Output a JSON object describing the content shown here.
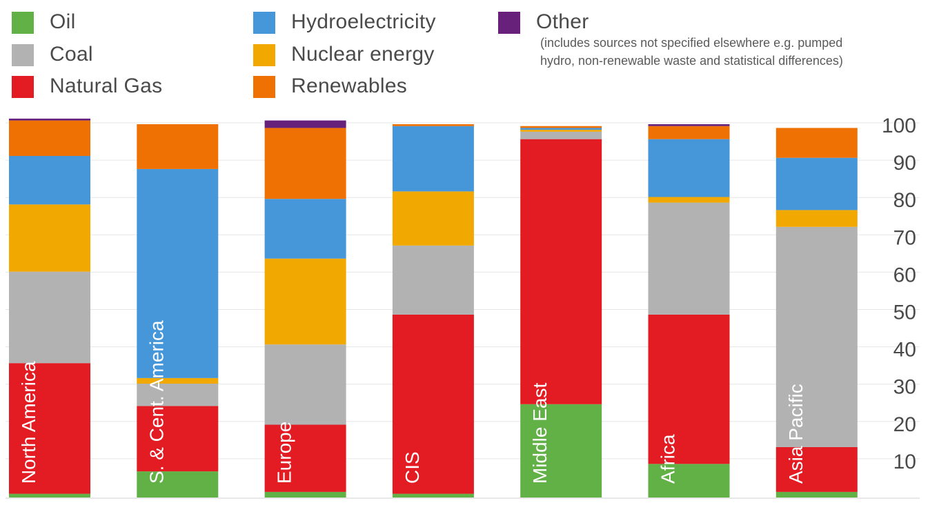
{
  "legend": {
    "items": [
      {
        "key": "oil",
        "label": "Oil",
        "color": "#62b146"
      },
      {
        "key": "coal",
        "label": "Coal",
        "color": "#b1b2b1"
      },
      {
        "key": "gas",
        "label": "Natural Gas",
        "color": "#e31b23"
      },
      {
        "key": "hydro",
        "label": "Hydroelectricity",
        "color": "#4697d9"
      },
      {
        "key": "nuclear",
        "label": "Nuclear energy",
        "color": "#f1a800"
      },
      {
        "key": "renew",
        "label": "Renewables",
        "color": "#ef7104"
      },
      {
        "key": "other",
        "label": "Other",
        "color": "#68217a"
      }
    ],
    "other_note": "(includes sources not specified elsewhere e.g. pumped hydro, non-renewable waste and statistical differences)"
  },
  "chart_data": {
    "type": "bar",
    "stacked": true,
    "categories": [
      "North America",
      "S. & Cent. America",
      "Europe",
      "CIS",
      "Middle East",
      "Africa",
      "Asia Pacific"
    ],
    "series": [
      {
        "name": "Oil",
        "key": "oil",
        "color": "#62b146",
        "values": [
          1,
          7,
          1.5,
          1,
          25,
          9,
          1.5
        ]
      },
      {
        "name": "Natural Gas",
        "key": "gas",
        "color": "#e31b23",
        "values": [
          35,
          17.5,
          18,
          48,
          71,
          40,
          12
        ]
      },
      {
        "name": "Coal",
        "key": "coal",
        "color": "#b1b2b1",
        "values": [
          24.5,
          6,
          21.5,
          18.5,
          2,
          30,
          59
        ]
      },
      {
        "name": "Nuclear energy",
        "key": "nuclear",
        "color": "#f1a800",
        "values": [
          18,
          1.5,
          23,
          14.5,
          0.5,
          1.5,
          4.5
        ]
      },
      {
        "name": "Hydroelectricity",
        "key": "hydro",
        "color": "#4697d9",
        "values": [
          13,
          56,
          16,
          17.5,
          0.5,
          15.5,
          14
        ]
      },
      {
        "name": "Renewables",
        "key": "renew",
        "color": "#ef7104",
        "values": [
          9.5,
          12,
          19,
          0.5,
          0.5,
          3.5,
          8
        ]
      },
      {
        "name": "Other",
        "key": "other",
        "color": "#68217a",
        "values": [
          0.5,
          0,
          2,
          0,
          0,
          0.5,
          0
        ]
      }
    ],
    "yticks": [
      10,
      20,
      30,
      40,
      50,
      60,
      70,
      80,
      90,
      100
    ],
    "ylim": [
      0,
      100
    ],
    "grid": true,
    "axis_side": "right",
    "legend_position": "top"
  }
}
